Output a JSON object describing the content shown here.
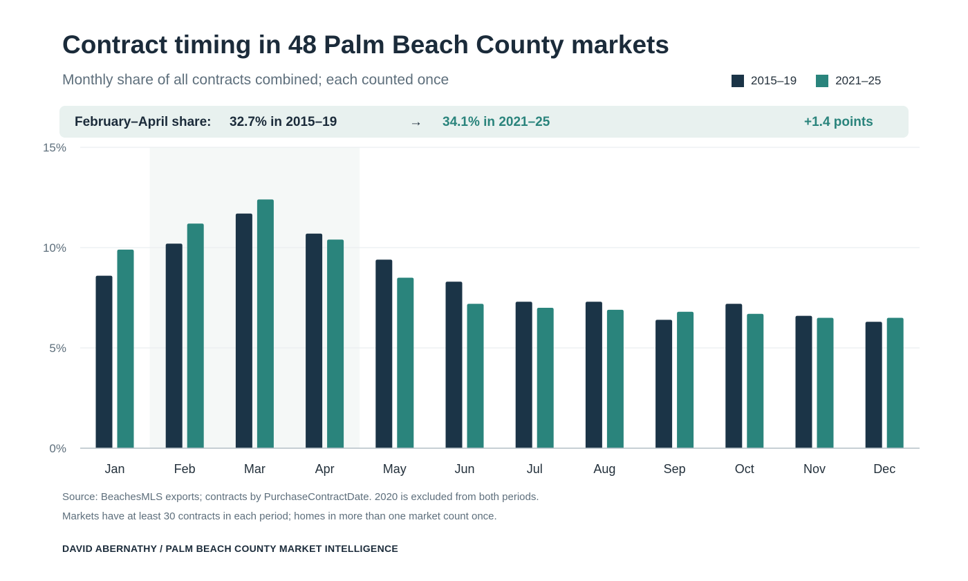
{
  "header": {
    "title": "Contract timing in 48 Palm Beach County markets",
    "subtitle": "Monthly share of all contracts combined; each counted once"
  },
  "legend": {
    "items": [
      {
        "label": "2015–19",
        "color": "#1b3447"
      },
      {
        "label": "2021–25",
        "color": "#2a847c"
      }
    ]
  },
  "callout": {
    "label": "February–April share:",
    "before": "32.7% in 2015–19",
    "arrow": "→",
    "after": "34.1% in 2021–25",
    "delta": "+1.4 points"
  },
  "chart_data": {
    "type": "bar",
    "categories": [
      "Jan",
      "Feb",
      "Mar",
      "Apr",
      "May",
      "Jun",
      "Jul",
      "Aug",
      "Sep",
      "Oct",
      "Nov",
      "Dec"
    ],
    "series": [
      {
        "name": "2015–19",
        "color": "#1b3447",
        "values": [
          8.6,
          10.2,
          11.7,
          10.7,
          9.4,
          8.3,
          7.3,
          7.3,
          6.4,
          7.2,
          6.6,
          6.3
        ]
      },
      {
        "name": "2021–25",
        "color": "#2a847c",
        "values": [
          9.9,
          11.2,
          12.4,
          10.4,
          8.5,
          7.2,
          7.0,
          6.9,
          6.8,
          6.7,
          6.5,
          6.5
        ]
      }
    ],
    "ylim": [
      0,
      15
    ],
    "yticks": [
      0,
      5,
      10,
      15
    ],
    "ytick_labels": [
      "0%",
      "5%",
      "10%",
      "15%"
    ],
    "highlight_range": [
      "Feb",
      "Apr"
    ],
    "grid": true,
    "legend_placement": "top-right",
    "xlabel": "",
    "ylabel": ""
  },
  "footer": {
    "source_line1": "Source: BeachesMLS exports; contracts by PurchaseContractDate. 2020 is excluded from both periods.",
    "source_line2": "Markets have at least 30 contracts in each period; homes in more than one market count once.",
    "credit": "DAVID ABERNATHY / PALM BEACH COUNTY MARKET INTELLIGENCE"
  }
}
